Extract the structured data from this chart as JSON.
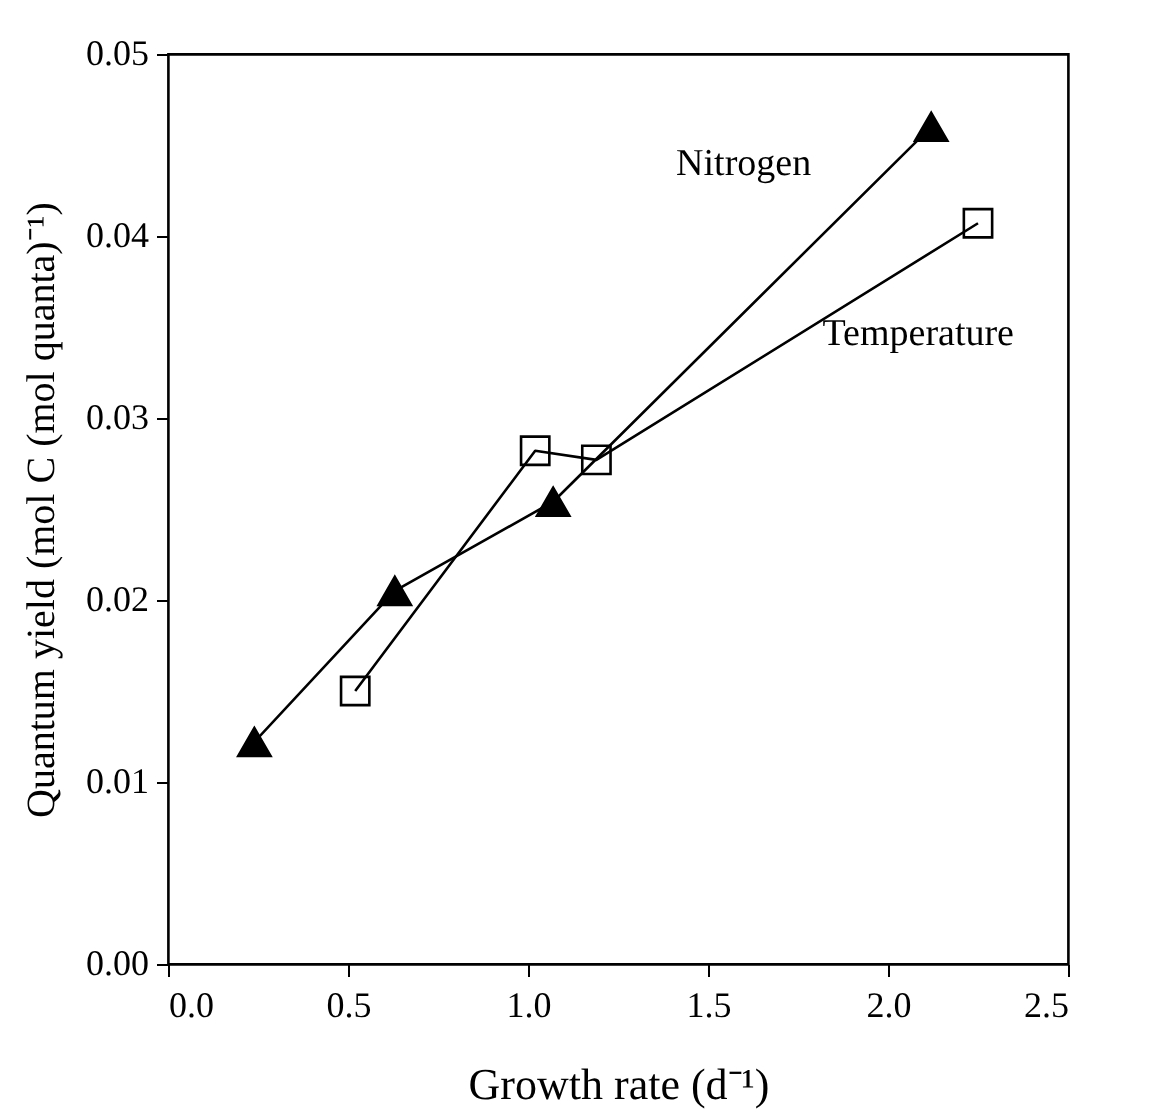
{
  "chart_data": {
    "type": "line",
    "xlabel": "Growth rate (d⁻¹)",
    "ylabel": "Quantum yield (mol C (mol quanta)⁻¹)",
    "xlim": [
      0,
      2.5
    ],
    "ylim": [
      0,
      0.05
    ],
    "xticks": [
      {
        "value": 0,
        "label": "0.0"
      },
      {
        "value": 0.5,
        "label": "0.5"
      },
      {
        "value": 1,
        "label": "1.0"
      },
      {
        "value": 1.5,
        "label": "1.5"
      },
      {
        "value": 2,
        "label": "2.0"
      },
      {
        "value": 2.5,
        "label": "2.5"
      }
    ],
    "yticks": [
      {
        "value": 0,
        "label": "0.00"
      },
      {
        "value": 0.01,
        "label": "0.01"
      },
      {
        "value": 0.02,
        "label": "0.02"
      },
      {
        "value": 0.03,
        "label": "0.03"
      },
      {
        "value": 0.04,
        "label": "0.04"
      },
      {
        "value": 0.05,
        "label": "0.05"
      }
    ],
    "grid": false,
    "legend": false,
    "line_style": "solid",
    "series": [
      {
        "name": "Nitrogen",
        "color": "#000000",
        "marker": "triangle",
        "x": [
          0.24,
          0.63,
          1.07,
          2.12
        ],
        "values": [
          0.0122,
          0.0205,
          0.0254,
          0.046
        ]
      },
      {
        "name": "Temperature",
        "color": "#000000",
        "marker": "square",
        "x": [
          0.52,
          1.02,
          1.19,
          2.25
        ],
        "values": [
          0.015,
          0.0282,
          0.0277,
          0.0407
        ]
      }
    ]
  }
}
